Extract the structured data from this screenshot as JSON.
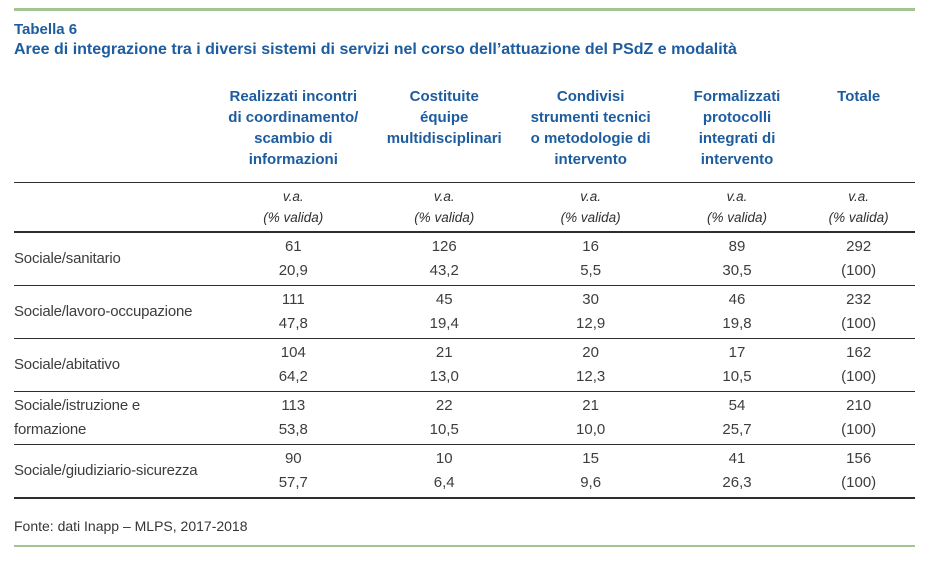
{
  "document": {
    "label": "Tabella 6",
    "title": "Aree di integrazione tra i diversi sistemi di servizi nel corso dell’attuazione del PSdZ e modalità",
    "source_note": "Fonte: dati Inapp – MLPS, 2017-2018"
  },
  "table": {
    "column_headers": [
      [
        "Realizzati incontri",
        "di coordinamento/",
        "scambio di",
        "informazioni"
      ],
      [
        "Costituite",
        "équipe",
        "multidisciplinari"
      ],
      [
        "Condivisi",
        "strumenti tecnici",
        "o metodologie di",
        "intervento"
      ],
      [
        "Formalizzati",
        "protocolli",
        "integrati di",
        "intervento"
      ],
      [
        "Totale"
      ]
    ],
    "measure_header": {
      "va": "v.a.",
      "pct": "(% valida)"
    },
    "rows": [
      {
        "label": "Sociale/sanitario",
        "va": [
          "61",
          "126",
          "16",
          "89",
          "292"
        ],
        "pct": [
          "20,9",
          "43,2",
          "5,5",
          "30,5",
          "(100)"
        ]
      },
      {
        "label": "Sociale/lavoro-occupazione",
        "va": [
          "111",
          "45",
          "30",
          "46",
          "232"
        ],
        "pct": [
          "47,8",
          "19,4",
          "12,9",
          "19,8",
          "(100)"
        ]
      },
      {
        "label": "Sociale/abitativo",
        "va": [
          "104",
          "21",
          "20",
          "17",
          "162"
        ],
        "pct": [
          "64,2",
          "13,0",
          "12,3",
          "10,5",
          "(100)"
        ]
      },
      {
        "label": [
          "Sociale/istruzione e",
          "formazione"
        ],
        "va": [
          "113",
          "22",
          "21",
          "54",
          "210"
        ],
        "pct": [
          "53,8",
          "10,5",
          "10,0",
          "25,7",
          "(100)"
        ]
      },
      {
        "label": "Sociale/giudiziario-sicurezza",
        "va": [
          "90",
          "10",
          "15",
          "41",
          "156"
        ],
        "pct": [
          "57,7",
          "6,4",
          "9,6",
          "26,3",
          "(100)"
        ]
      }
    ]
  },
  "colors": {
    "accent_blue": "#1d5c9e",
    "accent_green": "#a3c493"
  }
}
